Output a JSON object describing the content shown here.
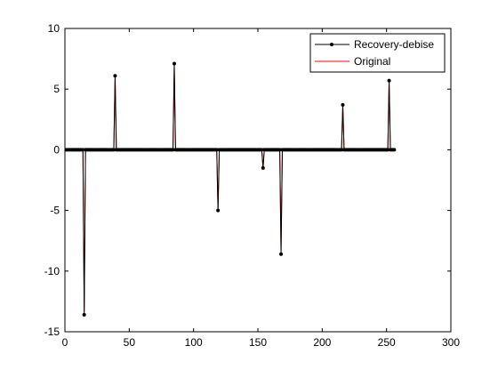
{
  "chart_data": {
    "type": "line",
    "xlim": [
      0,
      300
    ],
    "ylim": [
      -15,
      10
    ],
    "x_ticks": [
      0,
      50,
      100,
      150,
      200,
      250,
      300
    ],
    "y_ticks": [
      10,
      5,
      0,
      -5,
      -10,
      -15
    ],
    "x_tick_labels": [
      "0",
      "50",
      "100",
      "150",
      "200",
      "250",
      "300"
    ],
    "y_tick_labels": [
      "10",
      "5",
      "0",
      "-5",
      "-10",
      "-15"
    ],
    "grid": false,
    "legend_position": "top-right",
    "n_samples": 256,
    "x_start": 1,
    "spikes": [
      {
        "x": 15,
        "value": -13.6
      },
      {
        "x": 39,
        "value": 6.1
      },
      {
        "x": 85,
        "value": 7.1
      },
      {
        "x": 119,
        "value": -5.0
      },
      {
        "x": 154,
        "value": -1.5
      },
      {
        "x": 168,
        "value": -8.6
      },
      {
        "x": 216,
        "value": 3.7
      },
      {
        "x": 252,
        "value": 5.7
      }
    ],
    "series": [
      {
        "name": "Recovery-debise",
        "color": "#000000",
        "marker": "dot"
      },
      {
        "name": "Original",
        "color": "#ff0000",
        "marker": "none"
      }
    ]
  }
}
